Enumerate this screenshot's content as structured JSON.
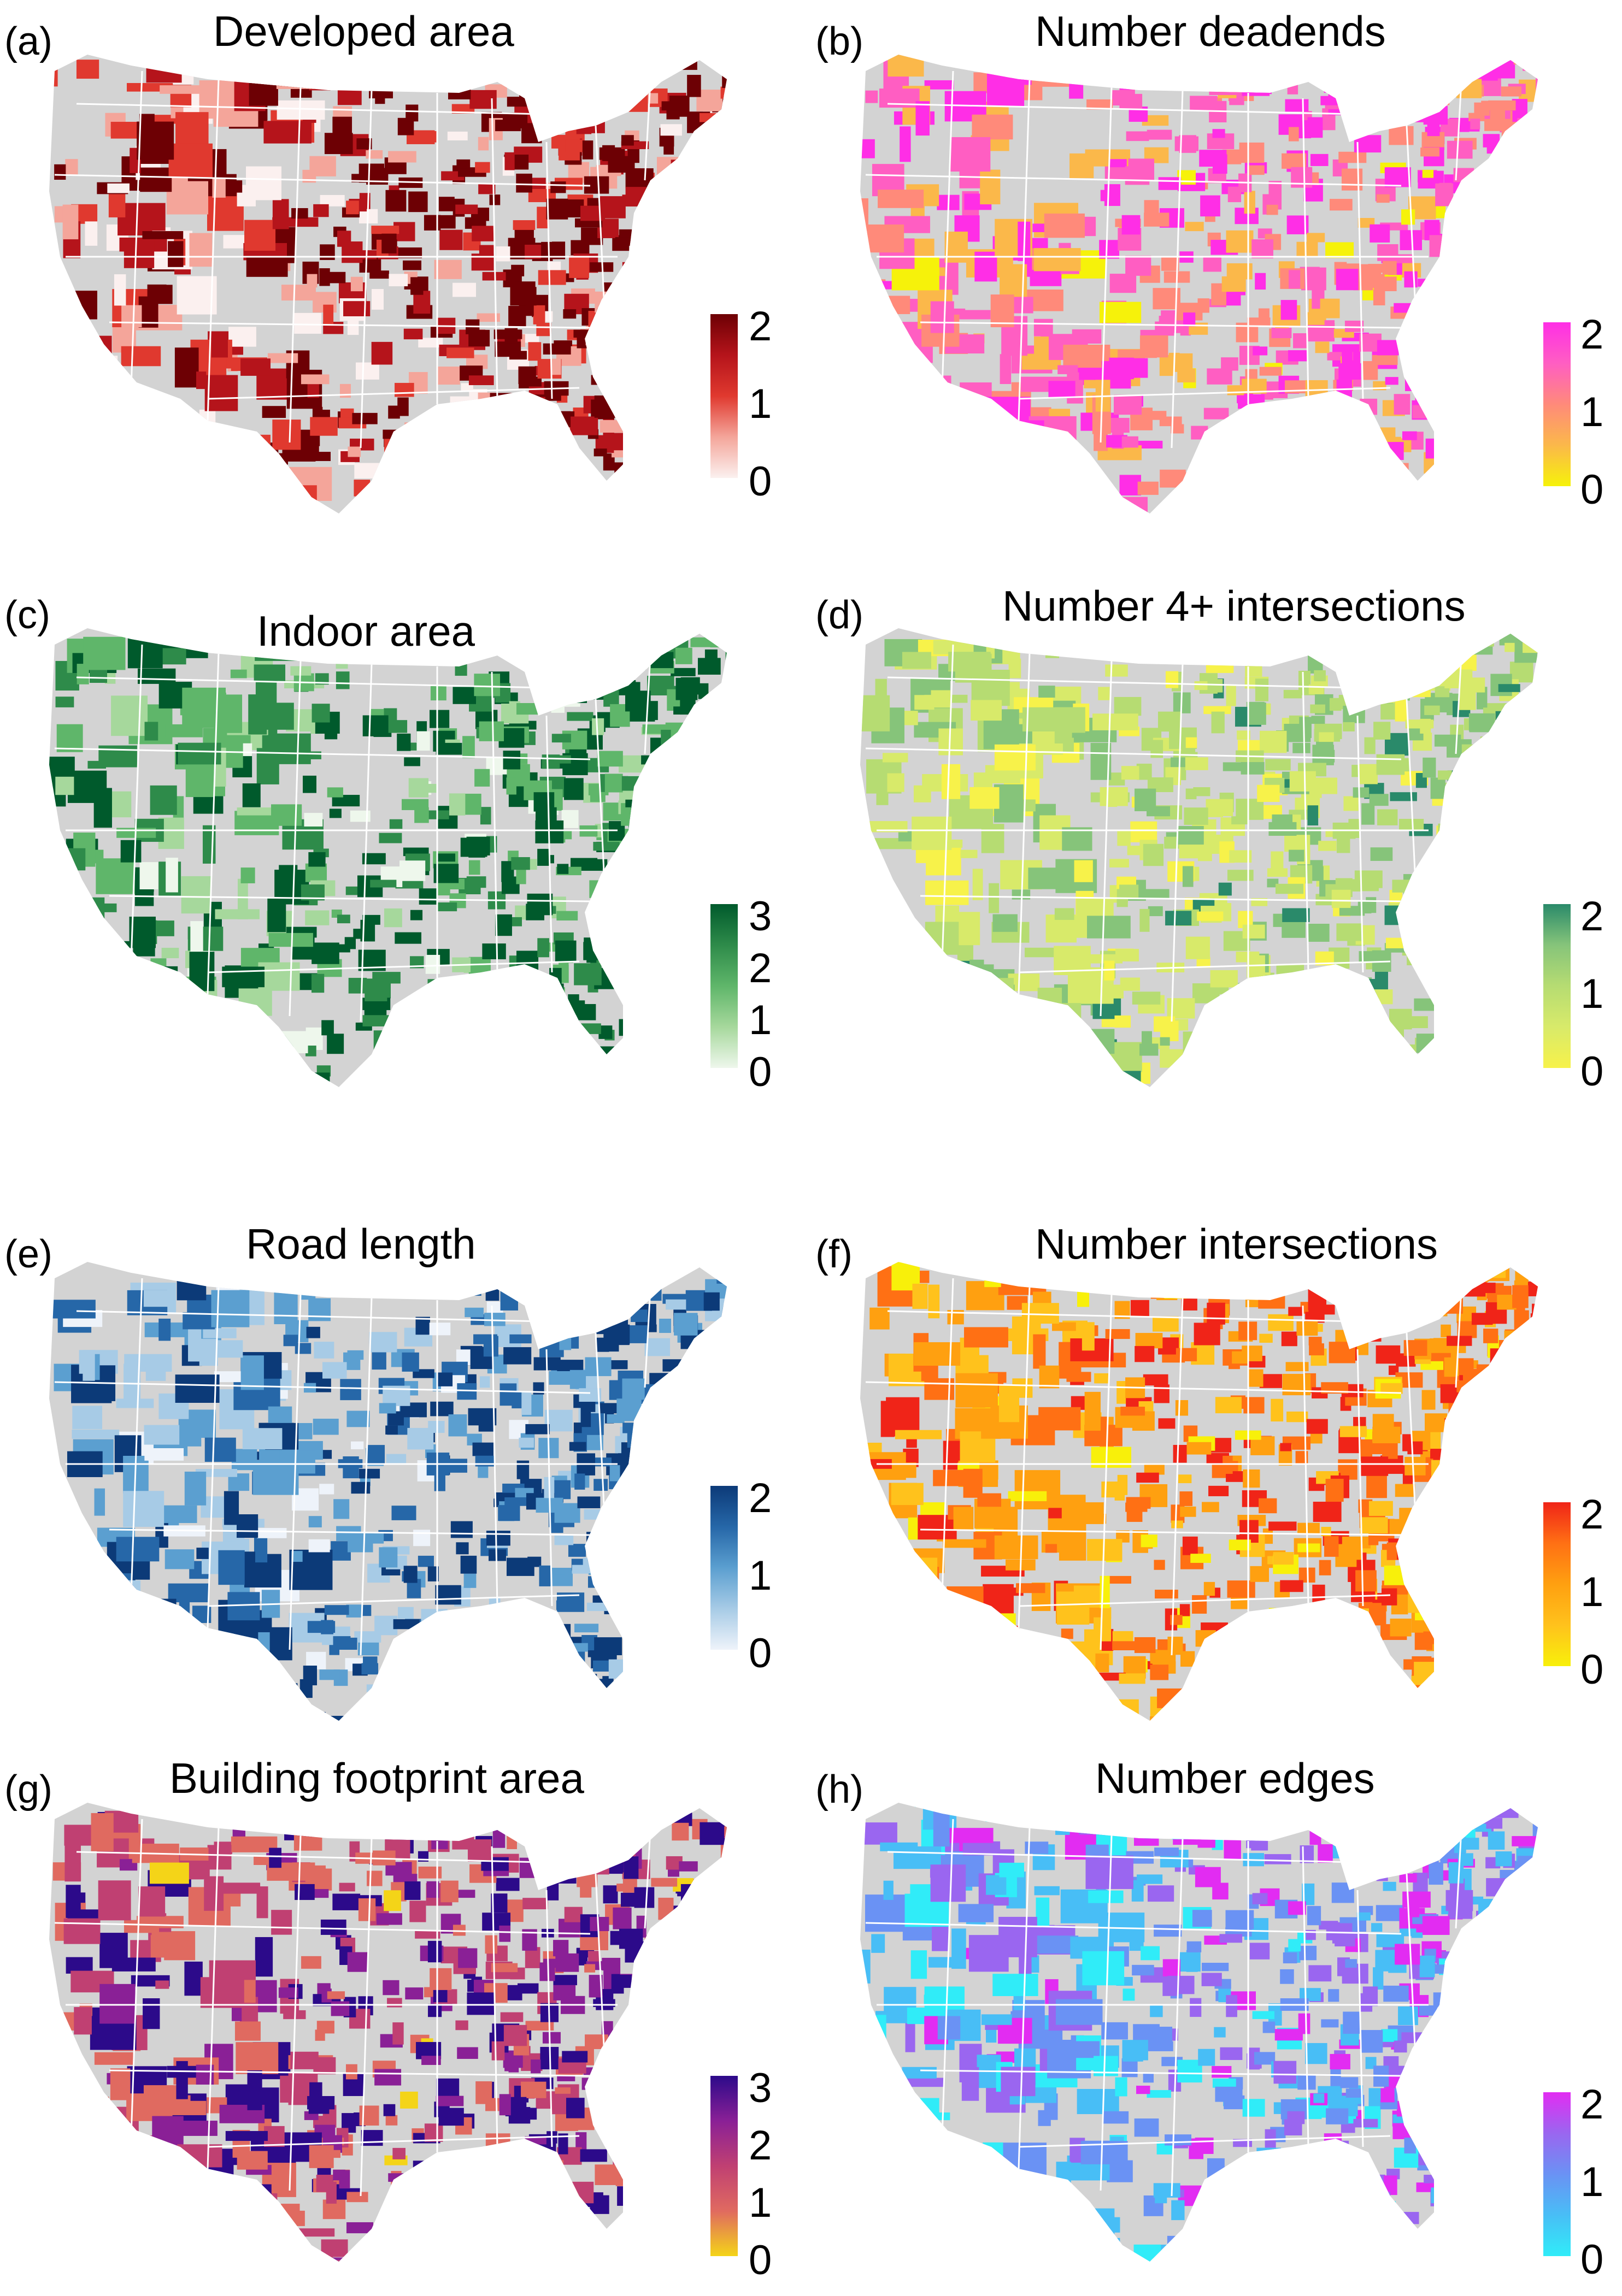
{
  "panels": [
    {
      "label": "(a)",
      "title": "Developed area",
      "ticks": [
        "2",
        "1",
        "0"
      ],
      "colors": [
        "#fbf0ef",
        "#f4a59a",
        "#e0392f",
        "#b5141b",
        "#6d0004"
      ],
      "dominant": [
        0.15,
        0.25,
        0.35,
        0.45,
        0.9
      ]
    },
    {
      "label": "(b)",
      "title": "Number deadends",
      "ticks": [
        "2",
        "1",
        "0"
      ],
      "colors": [
        "#f6f20a",
        "#fbb84a",
        "#ff8a7a",
        "#ff5ec2",
        "#ff2ee6"
      ],
      "dominant": [
        0.05,
        0.35,
        0.55,
        0.75,
        0.8
      ]
    },
    {
      "label": "(c)",
      "title": "Indoor area",
      "ticks": [
        "3",
        "2",
        "1",
        "0"
      ],
      "colors": [
        "#eef7ec",
        "#a6d89c",
        "#5fb66a",
        "#2e8b4a",
        "#005a2c"
      ],
      "dominant": [
        0.1,
        0.25,
        0.45,
        0.55,
        0.9
      ]
    },
    {
      "label": "(d)",
      "title": "Number 4+ intersections",
      "ticks": [
        "2",
        "1",
        "0"
      ],
      "colors": [
        "#f7f24a",
        "#d8ea6a",
        "#b6dc72",
        "#86c47a",
        "#2a8a6a"
      ],
      "dominant": [
        0.25,
        0.55,
        0.55,
        0.45,
        0.15
      ]
    },
    {
      "label": "(e)",
      "title": "Road length",
      "ticks": [
        "2",
        "1",
        "0"
      ],
      "colors": [
        "#eef3fa",
        "#a7cbe6",
        "#5b9fd0",
        "#2667a8",
        "#0c3a78"
      ],
      "dominant": [
        0.15,
        0.4,
        0.55,
        0.55,
        0.8
      ]
    },
    {
      "label": "(f)",
      "title": "Number intersections",
      "ticks": [
        "2",
        "1",
        "0"
      ],
      "colors": [
        "#f8f00a",
        "#ffc21c",
        "#ffa010",
        "#ff7014",
        "#f02418"
      ],
      "dominant": [
        0.2,
        0.35,
        0.7,
        0.75,
        0.55
      ]
    },
    {
      "label": "(g)",
      "title": "Building footprint area",
      "ticks": [
        "3",
        "2",
        "1",
        "0"
      ],
      "colors": [
        "#f4d418",
        "#e06a60",
        "#c04072",
        "#8a2096",
        "#2c0a8a"
      ],
      "dominant": [
        0.05,
        0.55,
        0.55,
        0.55,
        0.8
      ]
    },
    {
      "label": "(h)",
      "title": "Number edges",
      "ticks": [
        "2",
        "1",
        "0"
      ],
      "colors": [
        "#30ecf8",
        "#48bef6",
        "#6a92f4",
        "#9a66f0",
        "#e22cf2"
      ],
      "dominant": [
        0.3,
        0.55,
        0.65,
        0.55,
        0.35
      ]
    }
  ],
  "background_color": "#d3d3d3",
  "state_border_color": "#ffffff"
}
